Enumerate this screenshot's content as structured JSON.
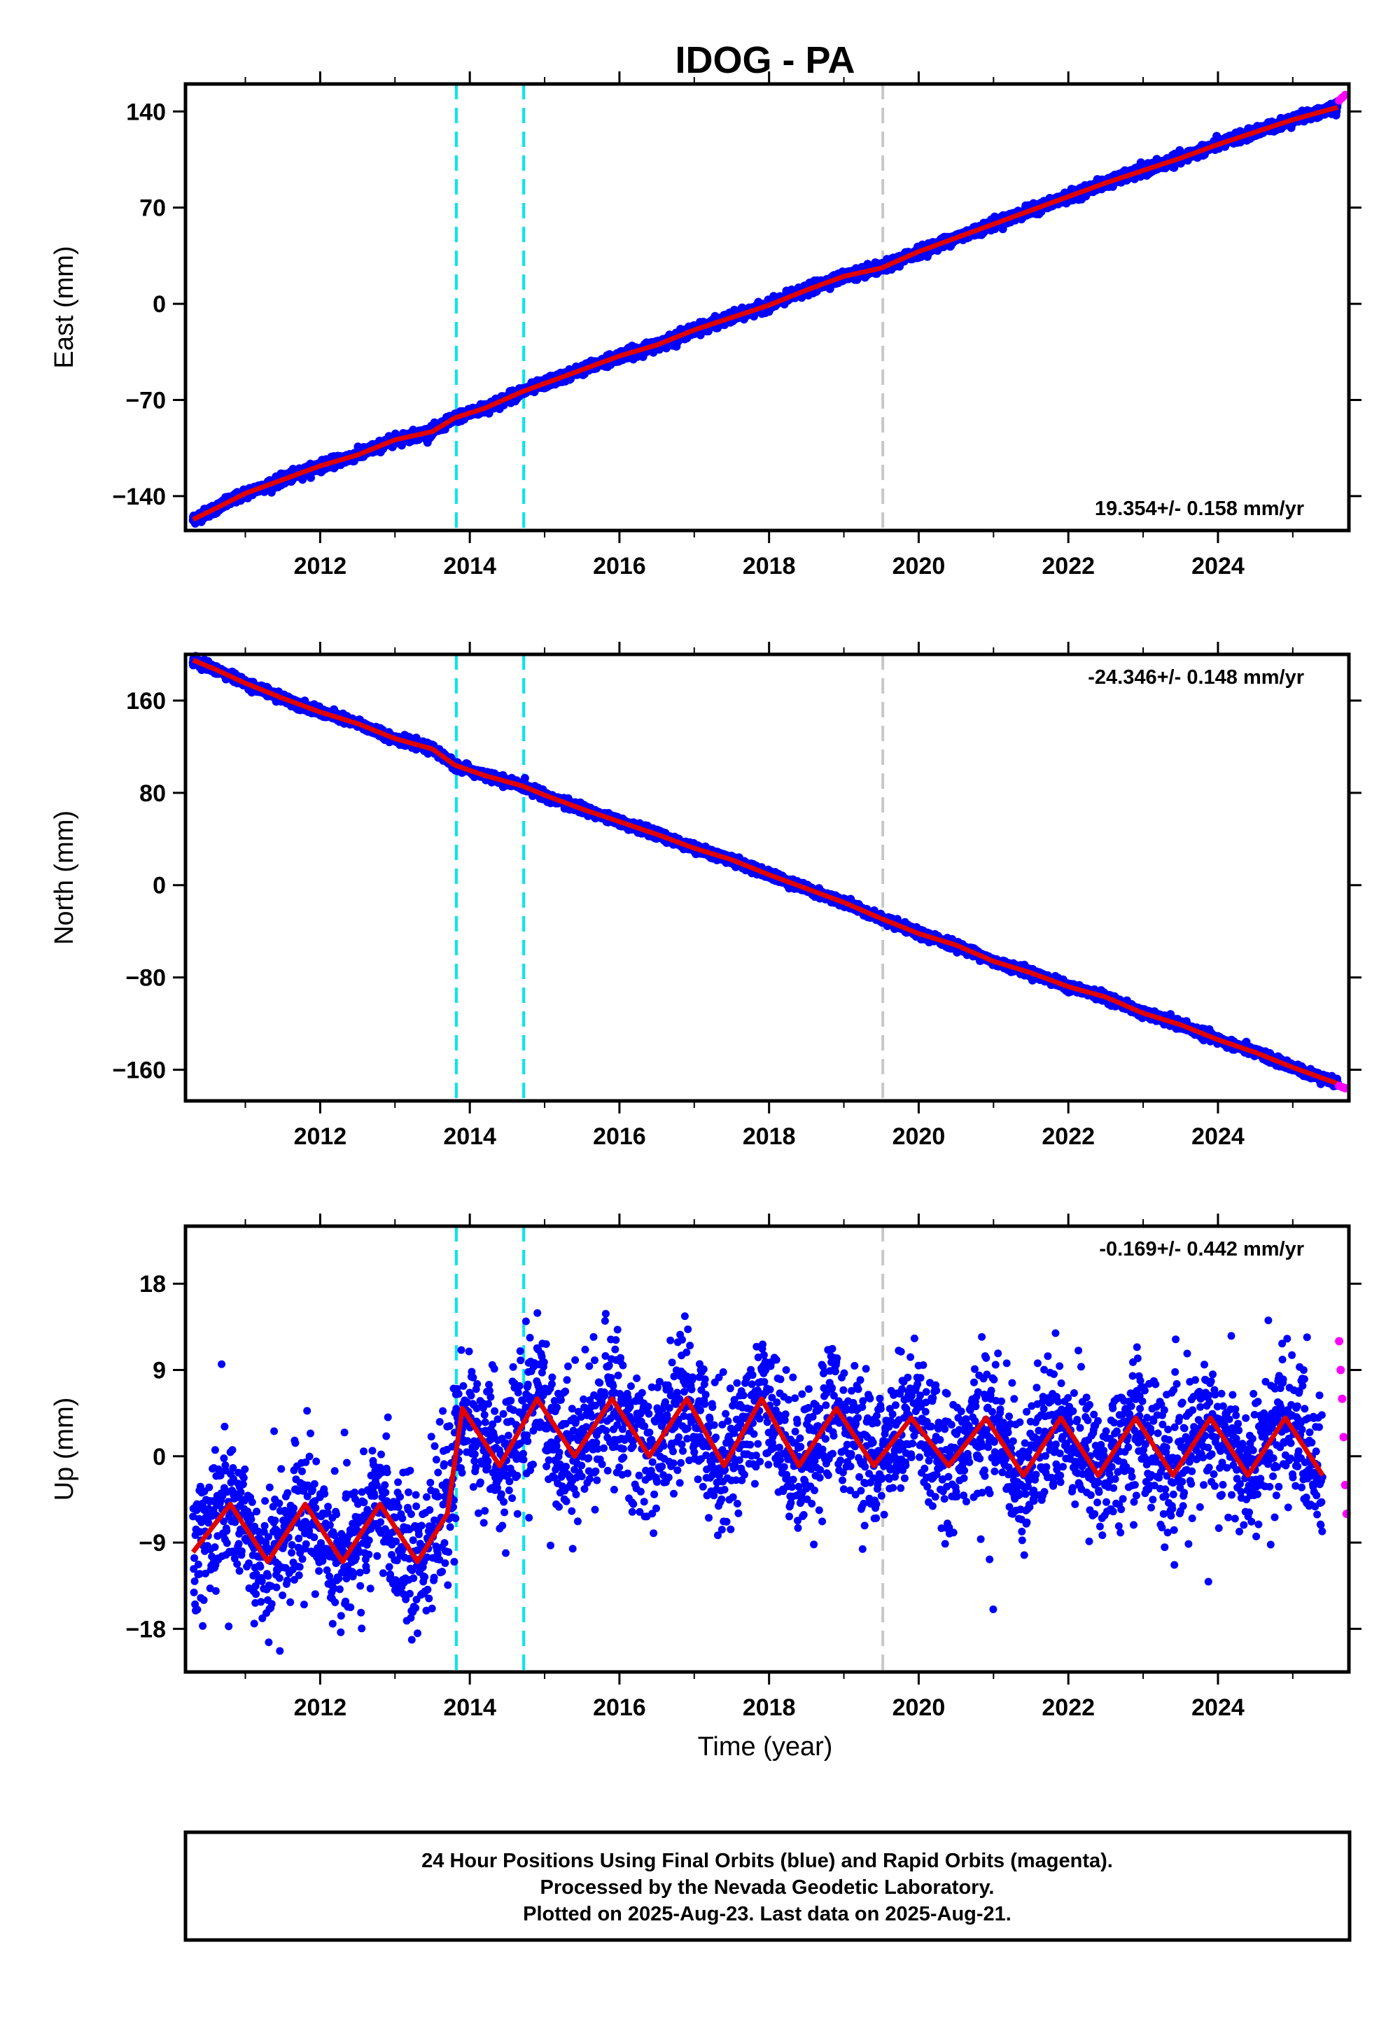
{
  "title": "IDOG - PA",
  "colors": {
    "final_orbits": "#0000ff",
    "rapid_orbits": "#ff00ff",
    "model": "#e00000",
    "event_line": "#00e5ee",
    "equipment_line": "#c8c8c8"
  },
  "chart_data": [
    {
      "type": "scatter",
      "name": "east",
      "ylabel": "East (mm)",
      "xlim": [
        2010.2,
        2025.75
      ],
      "ylim": [
        -165,
        160
      ],
      "xticks": [
        2012,
        2014,
        2016,
        2018,
        2020,
        2022,
        2024
      ],
      "xtick_labels": [
        "2012",
        "2014",
        "2016",
        "2018",
        "2020",
        "2022",
        "2024"
      ],
      "yticks": [
        -140,
        -70,
        0,
        70,
        140
      ],
      "ytick_labels": [
        "−140",
        "−70",
        "0",
        "70",
        "140"
      ],
      "rate_label": "19.354+/- 0.158 mm/yr",
      "rate_position": "bottom-right",
      "series": [
        {
          "name": "Final Orbits",
          "color": "blue",
          "x": [
            2010.3,
            2010.6,
            2011.0,
            2011.5,
            2012.0,
            2012.5,
            2013.0,
            2013.5,
            2013.8,
            2014.2,
            2014.7,
            2015.0,
            2015.5,
            2016.0,
            2016.5,
            2017.0,
            2017.5,
            2018.0,
            2018.5,
            2019.0,
            2019.5,
            2020.0,
            2020.5,
            2021.0,
            2021.5,
            2022.0,
            2022.5,
            2023.0,
            2023.5,
            2024.0,
            2024.5,
            2025.0,
            2025.6
          ],
          "y": [
            -157,
            -149,
            -138,
            -128,
            -118,
            -110,
            -99,
            -93,
            -83,
            -76,
            -64,
            -58,
            -48,
            -38,
            -30,
            -19,
            -10,
            -1,
            10,
            20,
            26,
            38,
            48,
            58,
            68,
            78,
            88,
            97,
            106,
            116,
            125,
            134,
            143
          ]
        },
        {
          "name": "Rapid Orbits",
          "color": "magenta",
          "x": [
            2025.62,
            2025.66,
            2025.7
          ],
          "y": [
            148,
            150,
            152
          ]
        }
      ],
      "event_lines": {
        "cyan": [
          2013.82,
          2014.72
        ],
        "gray": [
          2019.52
        ]
      }
    },
    {
      "type": "scatter",
      "name": "north",
      "ylabel": "North (mm)",
      "xlim": [
        2010.2,
        2025.75
      ],
      "ylim": [
        -187,
        200
      ],
      "xticks": [
        2012,
        2014,
        2016,
        2018,
        2020,
        2022,
        2024
      ],
      "xtick_labels": [
        "2012",
        "2014",
        "2016",
        "2018",
        "2020",
        "2022",
        "2024"
      ],
      "yticks": [
        -160,
        -80,
        0,
        80,
        160
      ],
      "ytick_labels": [
        "−160",
        "−80",
        "0",
        "80",
        "160"
      ],
      "rate_label": "-24.346+/- 0.148 mm/yr",
      "rate_position": "top-right",
      "series": [
        {
          "name": "Final Orbits",
          "color": "blue",
          "x": [
            2010.3,
            2010.6,
            2011.0,
            2011.5,
            2012.0,
            2012.5,
            2013.0,
            2013.5,
            2013.8,
            2014.2,
            2014.7,
            2015.0,
            2015.5,
            2016.0,
            2016.5,
            2017.0,
            2017.5,
            2018.0,
            2018.5,
            2019.0,
            2019.5,
            2020.0,
            2020.5,
            2021.0,
            2021.5,
            2022.0,
            2022.5,
            2023.0,
            2023.5,
            2024.0,
            2024.5,
            2025.0,
            2025.6
          ],
          "y": [
            195,
            187,
            175,
            162,
            150,
            140,
            127,
            118,
            104,
            95,
            86,
            78,
            66,
            55,
            44,
            32,
            22,
            9,
            -3,
            -15,
            -29,
            -42,
            -52,
            -66,
            -76,
            -88,
            -97,
            -111,
            -121,
            -134,
            -145,
            -158,
            -172
          ]
        },
        {
          "name": "Rapid Orbits",
          "color": "magenta",
          "x": [
            2025.62,
            2025.66,
            2025.7
          ],
          "y": [
            -174,
            -175,
            -176
          ]
        }
      ],
      "event_lines": {
        "cyan": [
          2013.82,
          2014.72
        ],
        "gray": [
          2019.52
        ]
      }
    },
    {
      "type": "scatter",
      "name": "up",
      "ylabel": "Up (mm)",
      "xlabel": "Time (year)",
      "xlim": [
        2010.2,
        2025.75
      ],
      "ylim": [
        -22.5,
        24
      ],
      "xticks": [
        2012,
        2014,
        2016,
        2018,
        2020,
        2022,
        2024
      ],
      "xtick_labels": [
        "2012",
        "2014",
        "2016",
        "2018",
        "2020",
        "2022",
        "2024"
      ],
      "yticks": [
        -18,
        -9,
        0,
        9,
        18
      ],
      "ytick_labels": [
        "−18",
        "−9",
        "0",
        "9",
        "18"
      ],
      "rate_label": "-0.169+/- 0.442 mm/yr",
      "rate_position": "top-right",
      "series": [
        {
          "name": "Final Orbits",
          "color": "blue",
          "x": [
            2010.3,
            2010.8,
            2011.3,
            2011.8,
            2012.3,
            2012.8,
            2013.3,
            2013.7,
            2013.9,
            2014.4,
            2014.9,
            2015.4,
            2015.9,
            2016.4,
            2016.9,
            2017.4,
            2017.9,
            2018.4,
            2018.9,
            2019.4,
            2019.9,
            2020.4,
            2020.9,
            2021.4,
            2021.9,
            2022.4,
            2022.9,
            2023.4,
            2023.9,
            2024.4,
            2024.9,
            2025.4
          ],
          "y": [
            -10,
            -5,
            -11,
            -5,
            -11,
            -5,
            -11,
            -6,
            5,
            -1,
            6,
            0,
            6,
            0,
            6,
            -1,
            6,
            -1,
            5,
            -1,
            4,
            -1,
            4,
            -2,
            4,
            -2,
            4,
            -2,
            4,
            -2,
            4,
            -2
          ]
        },
        {
          "name": "Rapid Orbits",
          "color": "magenta",
          "x": [
            2025.62,
            2025.64,
            2025.66,
            2025.68,
            2025.7,
            2025.72
          ],
          "y": [
            12,
            9,
            6,
            2,
            -3,
            -6
          ]
        }
      ],
      "event_lines": {
        "cyan": [
          2013.82,
          2014.72
        ],
        "gray": [
          2019.52
        ]
      }
    }
  ],
  "footer": {
    "line1": "24 Hour Positions Using Final Orbits (blue) and Rapid Orbits (magenta).",
    "line2": "Processed by the Nevada Geodetic Laboratory.",
    "line3": "Plotted on 2025-Aug-23. Last data on 2025-Aug-21."
  }
}
